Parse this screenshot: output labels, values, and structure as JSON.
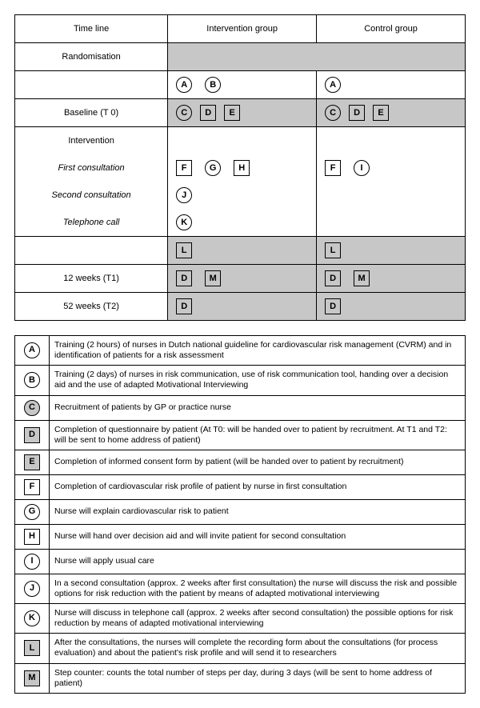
{
  "headers": {
    "timeline": "Time line",
    "intervention": "Intervention group",
    "control": "Control group"
  },
  "rows": {
    "randomisation": "Randomisation",
    "baseline": "Baseline (T 0)",
    "intervention": "Intervention",
    "first": "First consultation",
    "second": "Second consultation",
    "telephone": "Telephone call",
    "t1": "12 weeks (T1)",
    "t2": "52 weeks (T2)"
  },
  "letters": {
    "A": "A",
    "B": "B",
    "C": "C",
    "D": "D",
    "E": "E",
    "F": "F",
    "G": "G",
    "H": "H",
    "I": "I",
    "J": "J",
    "K": "K",
    "L": "L",
    "M": "M"
  },
  "shapes": {
    "A": "circle",
    "B": "circle",
    "C": "circle",
    "D": "square",
    "E": "square",
    "F": "square",
    "G": "circle",
    "H": "square",
    "I": "circle",
    "J": "circle",
    "K": "circle",
    "L": "square",
    "M": "square"
  },
  "fills": {
    "A": false,
    "B": false,
    "C": true,
    "D": true,
    "E": true,
    "F": false,
    "G": false,
    "H": false,
    "I": false,
    "J": false,
    "K": false,
    "L": true,
    "M": true
  },
  "legend": {
    "A": "Training (2 hours) of nurses in Dutch national guideline for cardiovascular risk management (CVRM) and in identification of patients for a risk assessment",
    "B": "Training (2 days) of nurses in risk communication, use of risk communication tool, handing over a decision aid and the use of adapted Motivational Interviewing",
    "C": "Recruitment of patients by GP or practice nurse",
    "D": "Completion of questionnaire by patient (At T0: will be handed over to patient by recruitment. At T1 and T2: will be sent to home address of patient)",
    "E": "Completion of informed consent form by patient (will be handed over to patient by recruitment)",
    "F": "Completion of cardiovascular risk profile of patient by nurse in first consultation",
    "G": "Nurse will explain cardiovascular risk to patient",
    "H": "Nurse will hand over decision aid and will invite patient for second consultation",
    "I": "Nurse will apply usual care",
    "J": "In a second consultation (approx. 2 weeks after first consultation) the nurse will discuss the risk and possible options for risk reduction with the patient by means of adapted motivational interviewing",
    "K": "Nurse will discuss in telephone call (approx. 2 weeks after second consultation) the possible options for risk reduction by means of adapted motivational interviewing",
    "L": "After the consultations, the nurses will complete the recording form about the consultations (for process evaluation) and about the patient's risk profile and will send it to researchers",
    "M": "Step counter: counts the total number of steps per day, during 3 days (will be sent to home address of patient)"
  },
  "colors": {
    "shade": "#c7c7c7",
    "border": "#000000",
    "bg": "#ffffff"
  }
}
